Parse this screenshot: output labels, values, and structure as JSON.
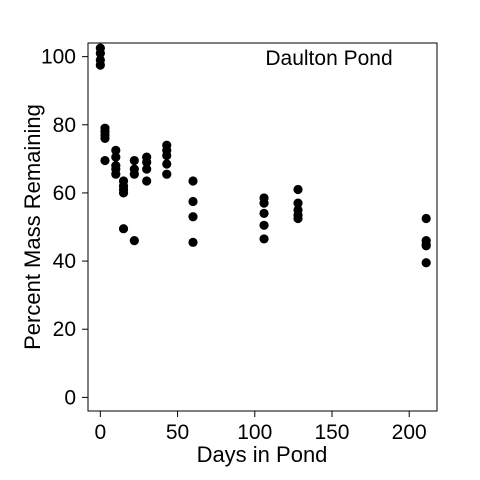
{
  "chart_data": {
    "type": "scatter",
    "title": "",
    "annotation": "Daulton Pond",
    "xlabel": "Days in Pond",
    "ylabel": "Percent Mass Remaining",
    "xlim": [
      -8,
      218
    ],
    "ylim": [
      -4,
      104
    ],
    "xticks": [
      0,
      50,
      100,
      150,
      200
    ],
    "yticks": [
      0,
      20,
      40,
      60,
      80,
      100
    ],
    "xtick_labels": [
      "0",
      "50",
      "100",
      "150",
      "200"
    ],
    "ytick_labels": [
      "0",
      "20",
      "40",
      "60",
      "80",
      "100"
    ],
    "grid": false,
    "legend": "none",
    "marker_color": "#000000",
    "series": [
      {
        "points": [
          [
            0,
            102.5
          ],
          [
            0,
            101.0
          ],
          [
            0,
            99.0
          ],
          [
            0,
            97.5
          ],
          [
            3,
            79.0
          ],
          [
            3,
            78.0
          ],
          [
            3,
            77.0
          ],
          [
            3,
            76.0
          ],
          [
            3,
            69.5
          ],
          [
            10,
            72.5
          ],
          [
            10,
            70.5
          ],
          [
            10,
            68.0
          ],
          [
            10,
            67.0
          ],
          [
            10,
            65.5
          ],
          [
            15,
            63.5
          ],
          [
            15,
            62.0
          ],
          [
            15,
            61.0
          ],
          [
            15,
            60.0
          ],
          [
            15,
            49.5
          ],
          [
            22,
            69.5
          ],
          [
            22,
            67.0
          ],
          [
            22,
            65.5
          ],
          [
            22,
            46.0
          ],
          [
            30,
            70.5
          ],
          [
            30,
            69.0
          ],
          [
            30,
            67.0
          ],
          [
            30,
            63.5
          ],
          [
            43,
            74.0
          ],
          [
            43,
            72.5
          ],
          [
            43,
            71.0
          ],
          [
            43,
            68.5
          ],
          [
            43,
            65.5
          ],
          [
            60,
            63.5
          ],
          [
            60,
            57.5
          ],
          [
            60,
            53.0
          ],
          [
            60,
            45.5
          ],
          [
            106,
            58.5
          ],
          [
            106,
            57.0
          ],
          [
            106,
            54.0
          ],
          [
            106,
            50.5
          ],
          [
            106,
            46.5
          ],
          [
            128,
            61.0
          ],
          [
            128,
            57.0
          ],
          [
            128,
            55.0
          ],
          [
            128,
            53.5
          ],
          [
            128,
            52.5
          ],
          [
            211,
            52.5
          ],
          [
            211,
            46.0
          ],
          [
            211,
            45.0
          ],
          [
            211,
            44.5
          ],
          [
            211,
            39.5
          ]
        ]
      }
    ]
  }
}
